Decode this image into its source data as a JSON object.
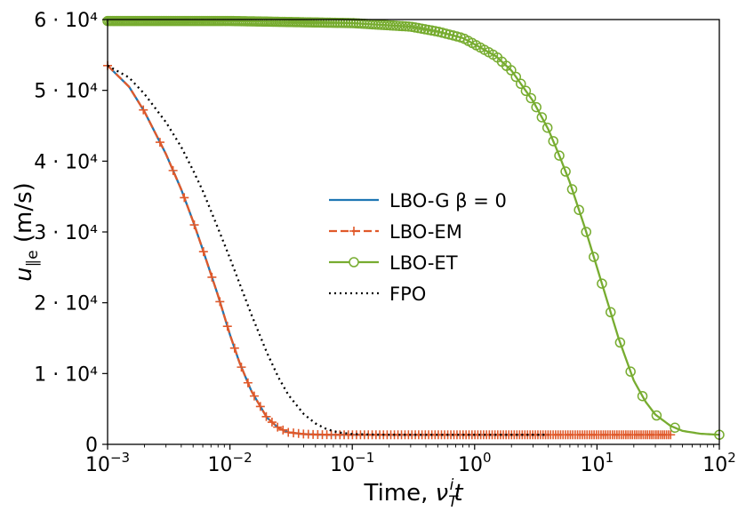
{
  "chart_data": {
    "type": "line",
    "xscale": "log",
    "xlim": [
      0.001,
      100
    ],
    "ylim": [
      0,
      60000
    ],
    "xlabel": "Time, ν_T^i t",
    "ylabel": "u_∥e (m/s)",
    "x_ticks": [
      {
        "value": 0.001,
        "base": "10",
        "exp": "−3"
      },
      {
        "value": 0.01,
        "base": "10",
        "exp": "−2"
      },
      {
        "value": 0.1,
        "base": "10",
        "exp": "−1"
      },
      {
        "value": 1,
        "base": "10",
        "exp": "0"
      },
      {
        "value": 10,
        "base": "10",
        "exp": "1"
      },
      {
        "value": 100,
        "base": "10",
        "exp": "2"
      }
    ],
    "y_ticks": [
      {
        "value": 0,
        "label": "0"
      },
      {
        "value": 10000,
        "label": "1 · 10⁴"
      },
      {
        "value": 20000,
        "label": "2 · 10⁴"
      },
      {
        "value": 30000,
        "label": "3 · 10⁴"
      },
      {
        "value": 40000,
        "label": "4 · 10⁴"
      },
      {
        "value": 50000,
        "label": "5 · 10⁴"
      },
      {
        "value": 60000,
        "label": "6 · 10⁴"
      }
    ],
    "legend_position": "center-right",
    "series": [
      {
        "name": "LBO-G β = 0",
        "color": "#1f77b4",
        "style": "solid",
        "marker": "none",
        "x": [
          0.001,
          0.0015,
          0.002,
          0.003,
          0.004,
          0.005,
          0.006,
          0.008,
          0.01,
          0.012,
          0.015,
          0.02,
          0.025,
          0.03,
          0.04,
          0.05,
          0.07,
          0.1,
          0.2,
          0.5,
          1,
          2,
          4
        ],
        "y": [
          53500,
          50500,
          47000,
          41000,
          36000,
          31500,
          27500,
          21000,
          15500,
          11500,
          7500,
          3800,
          2300,
          1700,
          1450,
          1380,
          1350,
          1350,
          1350,
          1350,
          1350,
          1350,
          1350
        ]
      },
      {
        "name": "LBO-EM",
        "color": "#e0592a",
        "style": "dashed",
        "marker": "plus",
        "x": [
          0.001,
          0.0015,
          0.002,
          0.003,
          0.004,
          0.005,
          0.006,
          0.008,
          0.01,
          0.012,
          0.015,
          0.02,
          0.025,
          0.03,
          0.04,
          0.05,
          0.07,
          0.1,
          0.2,
          0.5,
          1,
          2,
          5,
          10,
          20,
          40
        ],
        "y": [
          53500,
          50500,
          47000,
          41000,
          36000,
          31500,
          27500,
          21000,
          15500,
          11500,
          7500,
          3800,
          2300,
          1700,
          1450,
          1380,
          1350,
          1350,
          1350,
          1350,
          1350,
          1350,
          1350,
          1350,
          1350,
          1350
        ]
      },
      {
        "name": "LBO-ET",
        "color": "#77ac30",
        "style": "solid",
        "marker": "circle",
        "x": [
          0.001,
          0.01,
          0.1,
          0.3,
          0.5,
          0.8,
          1,
          1.5,
          2,
          3,
          4,
          5,
          6,
          8,
          10,
          12,
          15,
          20,
          25,
          30,
          40,
          50,
          70,
          100
        ],
        "y": [
          59800,
          59800,
          59500,
          59000,
          58300,
          57400,
          56500,
          54800,
          52800,
          48500,
          44500,
          40500,
          37000,
          30500,
          25000,
          20500,
          15000,
          9000,
          6000,
          4200,
          2600,
          1900,
          1500,
          1350
        ]
      },
      {
        "name": "FPO",
        "color": "#000000",
        "style": "dotted",
        "marker": "none",
        "x": [
          0.001,
          0.0015,
          0.002,
          0.003,
          0.004,
          0.005,
          0.006,
          0.008,
          0.01,
          0.012,
          0.015,
          0.02,
          0.025,
          0.03,
          0.04,
          0.05,
          0.06,
          0.07,
          0.08,
          0.1,
          0.15,
          0.2,
          0.5,
          1,
          4
        ],
        "y": [
          53500,
          51800,
          49500,
          45500,
          42000,
          38700,
          35800,
          30500,
          26300,
          22700,
          18300,
          13000,
          9400,
          7000,
          4300,
          2950,
          2250,
          1850,
          1650,
          1450,
          1380,
          1360,
          1350,
          1350,
          1350
        ]
      }
    ]
  }
}
